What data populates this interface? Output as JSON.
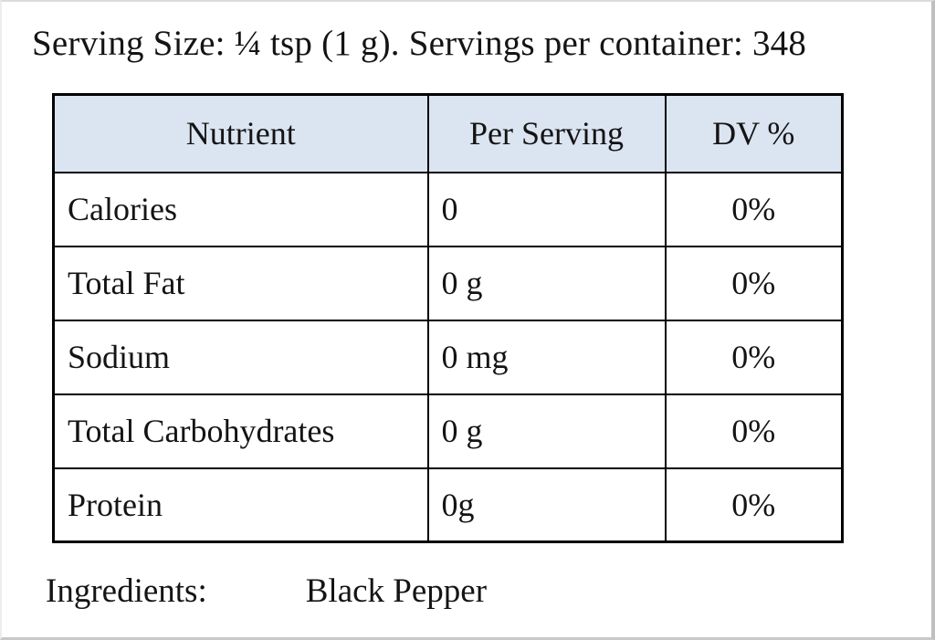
{
  "header": {
    "serving_line": "Serving Size: ¼ tsp (1 g). Servings per container: 348"
  },
  "table": {
    "header_bg": "#dbe5f1",
    "border_color": "#000000",
    "columns": [
      "Nutrient",
      "Per Serving",
      "DV %"
    ],
    "rows": [
      {
        "nutrient": "Calories",
        "per_serving": "0",
        "dv": "0%"
      },
      {
        "nutrient": "Total Fat",
        "per_serving": "0 g",
        "dv": "0%"
      },
      {
        "nutrient": "Sodium",
        "per_serving": "0 mg",
        "dv": "0%"
      },
      {
        "nutrient": "Total Carbohydrates",
        "per_serving": "0 g",
        "dv": "0%"
      },
      {
        "nutrient": "Protein",
        "per_serving": "0g",
        "dv": "0%"
      }
    ]
  },
  "footer": {
    "ingredients_label": "Ingredients:",
    "ingredients_value": "Black Pepper"
  }
}
